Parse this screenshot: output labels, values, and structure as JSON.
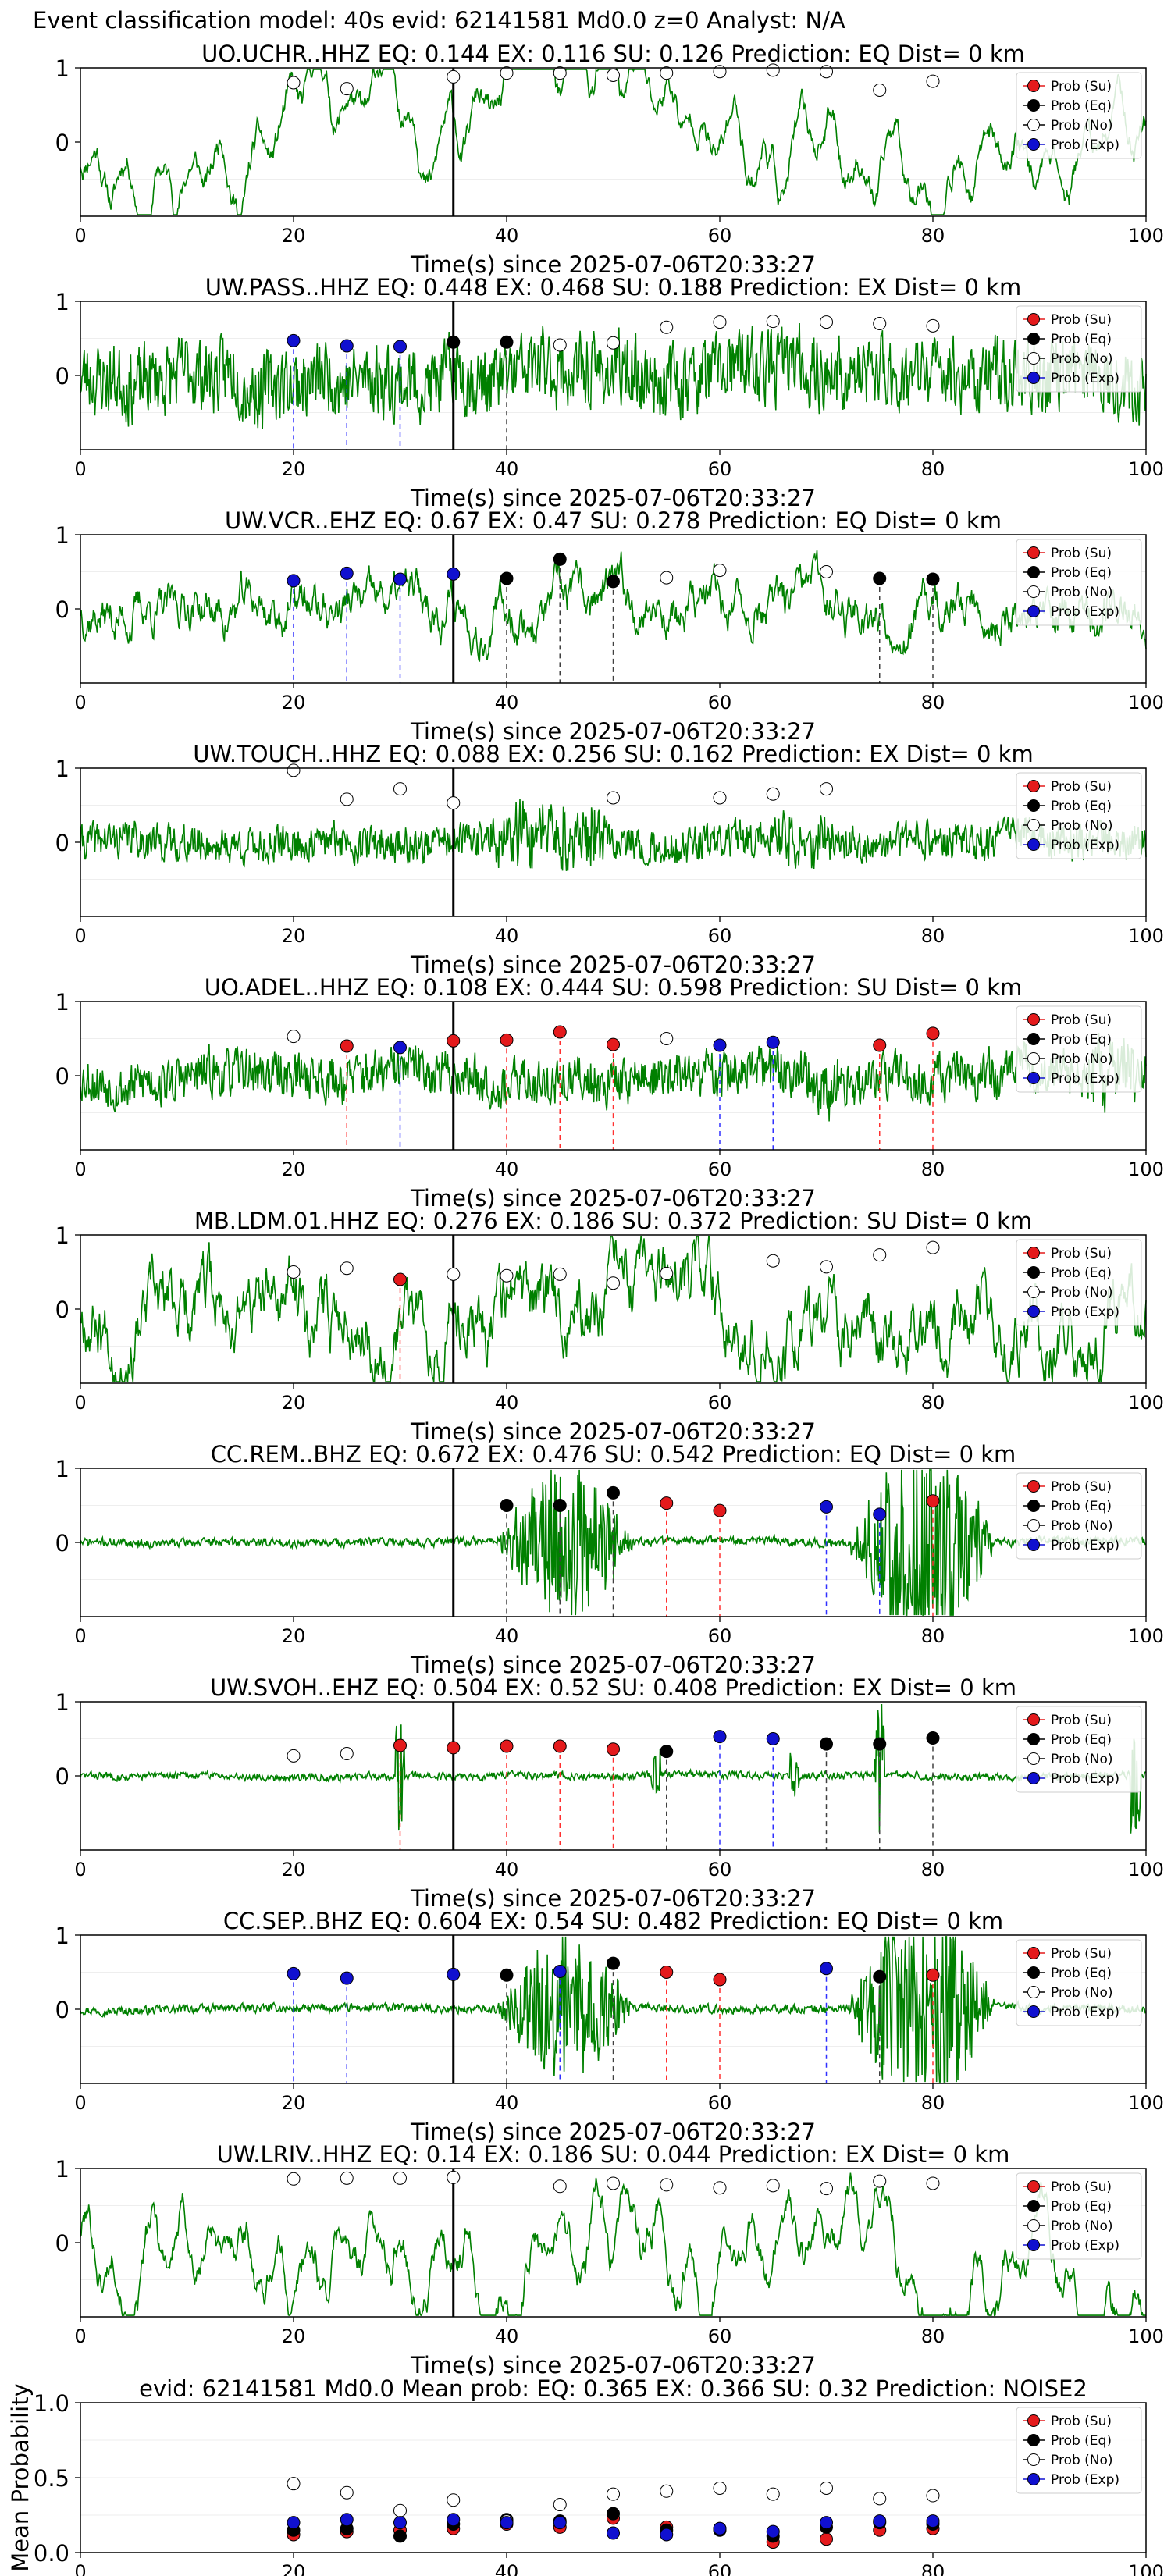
{
  "suptitle": "Event classification model: 40s evid: 62141581 Md0.0 z=0 Analyst: N/A",
  "xlabel": "Time(s) since 2025-07-06T20:33:27",
  "legend": [
    "Prob (Su)",
    "Prob (Eq)",
    "Prob (No)",
    "Prob (Exp)"
  ],
  "colors": {
    "su": "#e41a1c",
    "eq": "#000000",
    "no": "#ffffff",
    "exp": "#1010d0",
    "trace": "#008000",
    "su_line": "#ff3030",
    "eq_line": "#404040",
    "exp_line": "#3030ff"
  },
  "chart_data": [
    {
      "type": "line",
      "title": "UO.UCHR..HHZ   EQ: 0.144  EX: 0.116  SU: 0.126   Prediction: EQ    Dist= 0 km",
      "xlim": [
        0,
        100
      ],
      "ylim": [
        -1,
        1
      ],
      "xticks": [
        "0",
        "20",
        "40",
        "60",
        "80",
        "100"
      ],
      "yticks": [
        "1",
        "0"
      ],
      "pick_time": 35,
      "trace": {
        "seed": 11,
        "style": "smooth",
        "amp": 0.55
      },
      "points": [
        {
          "t": 20,
          "cls": "no",
          "p": 0.8
        },
        {
          "t": 25,
          "cls": "no",
          "p": 0.72
        },
        {
          "t": 35,
          "cls": "no",
          "p": 0.88
        },
        {
          "t": 40,
          "cls": "no",
          "p": 0.93
        },
        {
          "t": 45,
          "cls": "no",
          "p": 0.93
        },
        {
          "t": 50,
          "cls": "no",
          "p": 0.9
        },
        {
          "t": 55,
          "cls": "no",
          "p": 0.93
        },
        {
          "t": 60,
          "cls": "no",
          "p": 0.95
        },
        {
          "t": 65,
          "cls": "no",
          "p": 0.97
        },
        {
          "t": 70,
          "cls": "no",
          "p": 0.95
        },
        {
          "t": 75,
          "cls": "no",
          "p": 0.7
        },
        {
          "t": 80,
          "cls": "no",
          "p": 0.82
        }
      ]
    },
    {
      "type": "line",
      "title": "UW.PASS..HHZ   EQ: 0.448  EX: 0.468  SU: 0.188   Prediction: EX    Dist= 0 km",
      "xlim": [
        0,
        100
      ],
      "ylim": [
        -1,
        1
      ],
      "xticks": [
        "0",
        "20",
        "40",
        "60",
        "80",
        "100"
      ],
      "yticks": [
        "1",
        "0"
      ],
      "pick_time": 35,
      "trace": {
        "seed": 23,
        "style": "noisy",
        "amp": 0.7
      },
      "points": [
        {
          "t": 20,
          "cls": "exp",
          "p": 0.47
        },
        {
          "t": 25,
          "cls": "exp",
          "p": 0.4
        },
        {
          "t": 30,
          "cls": "exp",
          "p": 0.39
        },
        {
          "t": 35,
          "cls": "eq",
          "p": 0.45
        },
        {
          "t": 40,
          "cls": "eq",
          "p": 0.45
        },
        {
          "t": 45,
          "cls": "no",
          "p": 0.41
        },
        {
          "t": 50,
          "cls": "no",
          "p": 0.44
        },
        {
          "t": 55,
          "cls": "no",
          "p": 0.65
        },
        {
          "t": 60,
          "cls": "no",
          "p": 0.72
        },
        {
          "t": 65,
          "cls": "no",
          "p": 0.73
        },
        {
          "t": 70,
          "cls": "no",
          "p": 0.72
        },
        {
          "t": 75,
          "cls": "no",
          "p": 0.7
        },
        {
          "t": 80,
          "cls": "no",
          "p": 0.67
        }
      ]
    },
    {
      "type": "line",
      "title": "UW.VCR..EHZ   EQ: 0.67  EX: 0.47  SU: 0.278   Prediction: EQ    Dist= 0 km",
      "xlim": [
        0,
        100
      ],
      "ylim": [
        -1,
        1
      ],
      "xticks": [
        "0",
        "20",
        "40",
        "60",
        "80",
        "100"
      ],
      "yticks": [
        "1",
        "0"
      ],
      "pick_time": 35,
      "trace": {
        "seed": 37,
        "style": "medium",
        "amp": 0.35
      },
      "points": [
        {
          "t": 20,
          "cls": "exp",
          "p": 0.38
        },
        {
          "t": 25,
          "cls": "exp",
          "p": 0.48
        },
        {
          "t": 30,
          "cls": "exp",
          "p": 0.4
        },
        {
          "t": 35,
          "cls": "exp",
          "p": 0.47
        },
        {
          "t": 40,
          "cls": "eq",
          "p": 0.41
        },
        {
          "t": 45,
          "cls": "eq",
          "p": 0.67
        },
        {
          "t": 50,
          "cls": "eq",
          "p": 0.37
        },
        {
          "t": 55,
          "cls": "no",
          "p": 0.42
        },
        {
          "t": 60,
          "cls": "no",
          "p": 0.52
        },
        {
          "t": 70,
          "cls": "no",
          "p": 0.5
        },
        {
          "t": 75,
          "cls": "eq",
          "p": 0.41
        },
        {
          "t": 80,
          "cls": "eq",
          "p": 0.4
        }
      ]
    },
    {
      "type": "line",
      "title": "UW.TOUCH..HHZ   EQ: 0.088  EX: 0.256  SU: 0.162   Prediction: EX    Dist= 0 km",
      "xlim": [
        0,
        100
      ],
      "ylim": [
        -1,
        1
      ],
      "xticks": [
        "0",
        "20",
        "40",
        "60",
        "80",
        "100"
      ],
      "yticks": [
        "1",
        "0"
      ],
      "pick_time": 35,
      "trace": {
        "seed": 41,
        "style": "noisy",
        "amp": 0.35,
        "bursts": [
          [
            38,
            45,
            1.9
          ],
          [
            43,
            50,
            2.2
          ],
          [
            64,
            72,
            1.5
          ]
        ]
      },
      "points": [
        {
          "t": 20,
          "cls": "no",
          "p": 0.97
        },
        {
          "t": 25,
          "cls": "no",
          "p": 0.58
        },
        {
          "t": 30,
          "cls": "no",
          "p": 0.72
        },
        {
          "t": 35,
          "cls": "no",
          "p": 0.53
        },
        {
          "t": 50,
          "cls": "no",
          "p": 0.6
        },
        {
          "t": 60,
          "cls": "no",
          "p": 0.6
        },
        {
          "t": 65,
          "cls": "no",
          "p": 0.65
        },
        {
          "t": 70,
          "cls": "no",
          "p": 0.72
        }
      ]
    },
    {
      "type": "line",
      "title": "UO.ADEL..HHZ   EQ: 0.108  EX: 0.444  SU: 0.598   Prediction: SU    Dist= 0 km",
      "xlim": [
        0,
        100
      ],
      "ylim": [
        -1,
        1
      ],
      "xticks": [
        "0",
        "20",
        "40",
        "60",
        "80",
        "100"
      ],
      "yticks": [
        "1",
        "0"
      ],
      "pick_time": 35,
      "trace": {
        "seed": 53,
        "style": "noisy",
        "amp": 0.45,
        "bursts": [
          [
            66,
            74,
            1.9
          ],
          [
            93,
            100,
            1.8
          ]
        ]
      },
      "points": [
        {
          "t": 20,
          "cls": "no",
          "p": 0.53
        },
        {
          "t": 25,
          "cls": "su",
          "p": 0.4
        },
        {
          "t": 30,
          "cls": "exp",
          "p": 0.38
        },
        {
          "t": 35,
          "cls": "su",
          "p": 0.47
        },
        {
          "t": 40,
          "cls": "su",
          "p": 0.48
        },
        {
          "t": 45,
          "cls": "su",
          "p": 0.59
        },
        {
          "t": 50,
          "cls": "su",
          "p": 0.42
        },
        {
          "t": 55,
          "cls": "no",
          "p": 0.5
        },
        {
          "t": 60,
          "cls": "exp",
          "p": 0.41
        },
        {
          "t": 65,
          "cls": "exp",
          "p": 0.45
        },
        {
          "t": 75,
          "cls": "su",
          "p": 0.41
        },
        {
          "t": 80,
          "cls": "su",
          "p": 0.57
        }
      ]
    },
    {
      "type": "line",
      "title": "MB.LDM.01.HHZ   EQ: 0.276  EX: 0.186  SU: 0.372   Prediction: SU    Dist= 0 km",
      "xlim": [
        0,
        100
      ],
      "ylim": [
        -1,
        1
      ],
      "xticks": [
        "0",
        "20",
        "40",
        "60",
        "80",
        "100"
      ],
      "yticks": [
        "1",
        "0"
      ],
      "pick_time": 35,
      "trace": {
        "seed": 67,
        "style": "medium",
        "amp": 0.55
      },
      "points": [
        {
          "t": 20,
          "cls": "no",
          "p": 0.5
        },
        {
          "t": 25,
          "cls": "no",
          "p": 0.55
        },
        {
          "t": 30,
          "cls": "su",
          "p": 0.4
        },
        {
          "t": 35,
          "cls": "no",
          "p": 0.47
        },
        {
          "t": 40,
          "cls": "no",
          "p": 0.45
        },
        {
          "t": 45,
          "cls": "no",
          "p": 0.47
        },
        {
          "t": 50,
          "cls": "no",
          "p": 0.35
        },
        {
          "t": 55,
          "cls": "no",
          "p": 0.48
        },
        {
          "t": 65,
          "cls": "no",
          "p": 0.65
        },
        {
          "t": 70,
          "cls": "no",
          "p": 0.57
        },
        {
          "t": 75,
          "cls": "no",
          "p": 0.73
        },
        {
          "t": 80,
          "cls": "no",
          "p": 0.83
        }
      ]
    },
    {
      "type": "line",
      "title": "CC.REM..BHZ   EQ: 0.672  EX: 0.476  SU: 0.542   Prediction: EQ    Dist= 0 km",
      "xlim": [
        0,
        100
      ],
      "ylim": [
        -1,
        1
      ],
      "xticks": [
        "0",
        "20",
        "40",
        "60",
        "80",
        "100"
      ],
      "yticks": [
        "1",
        "0"
      ],
      "pick_time": 35,
      "trace": {
        "seed": 71,
        "style": "noisy",
        "amp": 0.08,
        "bursts": [
          [
            39,
            52,
            6.0
          ],
          [
            72,
            86,
            8.0
          ]
        ]
      },
      "points": [
        {
          "t": 40,
          "cls": "eq",
          "p": 0.5
        },
        {
          "t": 45,
          "cls": "eq",
          "p": 0.5
        },
        {
          "t": 50,
          "cls": "eq",
          "p": 0.67
        },
        {
          "t": 55,
          "cls": "su",
          "p": 0.53
        },
        {
          "t": 60,
          "cls": "su",
          "p": 0.43
        },
        {
          "t": 70,
          "cls": "exp",
          "p": 0.48
        },
        {
          "t": 75,
          "cls": "exp",
          "p": 0.38
        },
        {
          "t": 80,
          "cls": "su",
          "p": 0.56
        }
      ]
    },
    {
      "type": "line",
      "title": "UW.SVOH..EHZ   EQ: 0.504  EX: 0.52  SU: 0.408   Prediction: EX    Dist= 0 km",
      "xlim": [
        0,
        100
      ],
      "ylim": [
        -1,
        1
      ],
      "xticks": [
        "0",
        "20",
        "40",
        "60",
        "80",
        "100"
      ],
      "yticks": [
        "1",
        "0"
      ],
      "pick_time": 35,
      "trace": {
        "seed": 83,
        "style": "noisy",
        "amp": 0.07,
        "spikes": [
          [
            30,
            6
          ],
          [
            75,
            8
          ],
          [
            54,
            3
          ],
          [
            67,
            3
          ],
          [
            99,
            7
          ]
        ]
      },
      "points": [
        {
          "t": 20,
          "cls": "no",
          "p": 0.27
        },
        {
          "t": 25,
          "cls": "no",
          "p": 0.3
        },
        {
          "t": 30,
          "cls": "su",
          "p": 0.41
        },
        {
          "t": 35,
          "cls": "su",
          "p": 0.38
        },
        {
          "t": 40,
          "cls": "su",
          "p": 0.4
        },
        {
          "t": 45,
          "cls": "su",
          "p": 0.4
        },
        {
          "t": 50,
          "cls": "su",
          "p": 0.36
        },
        {
          "t": 55,
          "cls": "eq",
          "p": 0.33
        },
        {
          "t": 60,
          "cls": "exp",
          "p": 0.53
        },
        {
          "t": 65,
          "cls": "exp",
          "p": 0.5
        },
        {
          "t": 70,
          "cls": "eq",
          "p": 0.43
        },
        {
          "t": 75,
          "cls": "eq",
          "p": 0.43
        },
        {
          "t": 80,
          "cls": "eq",
          "p": 0.51
        }
      ]
    },
    {
      "type": "line",
      "title": "CC.SEP..BHZ   EQ: 0.604  EX: 0.54  SU: 0.482   Prediction: EQ    Dist= 0 km",
      "xlim": [
        0,
        100
      ],
      "ylim": [
        -1,
        1
      ],
      "xticks": [
        "0",
        "20",
        "40",
        "60",
        "80",
        "100"
      ],
      "yticks": [
        "1",
        "0"
      ],
      "pick_time": 35,
      "trace": {
        "seed": 97,
        "style": "noisy",
        "amp": 0.08,
        "bursts": [
          [
            39,
            52,
            5.5
          ],
          [
            72,
            86,
            8.0
          ]
        ]
      },
      "points": [
        {
          "t": 20,
          "cls": "exp",
          "p": 0.48
        },
        {
          "t": 25,
          "cls": "exp",
          "p": 0.42
        },
        {
          "t": 35,
          "cls": "exp",
          "p": 0.47
        },
        {
          "t": 40,
          "cls": "eq",
          "p": 0.46
        },
        {
          "t": 45,
          "cls": "exp",
          "p": 0.51
        },
        {
          "t": 50,
          "cls": "eq",
          "p": 0.62
        },
        {
          "t": 55,
          "cls": "su",
          "p": 0.5
        },
        {
          "t": 60,
          "cls": "su",
          "p": 0.4
        },
        {
          "t": 70,
          "cls": "exp",
          "p": 0.55
        },
        {
          "t": 75,
          "cls": "eq",
          "p": 0.44
        },
        {
          "t": 80,
          "cls": "su",
          "p": 0.46
        }
      ]
    },
    {
      "type": "line",
      "title": "UW.LRIV..HHZ   EQ: 0.14  EX: 0.186  SU: 0.044   Prediction: EX    Dist= 0 km",
      "xlim": [
        0,
        100
      ],
      "ylim": [
        -1,
        1
      ],
      "xticks": [
        "0",
        "20",
        "40",
        "60",
        "80",
        "100"
      ],
      "yticks": [
        "1",
        "0"
      ],
      "pick_time": 35,
      "trace": {
        "seed": 101,
        "style": "smooth",
        "amp": 0.65
      },
      "points": [
        {
          "t": 20,
          "cls": "no",
          "p": 0.86
        },
        {
          "t": 25,
          "cls": "no",
          "p": 0.87
        },
        {
          "t": 30,
          "cls": "no",
          "p": 0.87
        },
        {
          "t": 35,
          "cls": "no",
          "p": 0.88
        },
        {
          "t": 45,
          "cls": "no",
          "p": 0.76
        },
        {
          "t": 50,
          "cls": "no",
          "p": 0.8
        },
        {
          "t": 55,
          "cls": "no",
          "p": 0.78
        },
        {
          "t": 60,
          "cls": "no",
          "p": 0.74
        },
        {
          "t": 65,
          "cls": "no",
          "p": 0.77
        },
        {
          "t": 70,
          "cls": "no",
          "p": 0.73
        },
        {
          "t": 75,
          "cls": "no",
          "p": 0.83
        },
        {
          "t": 80,
          "cls": "no",
          "p": 0.8
        }
      ]
    },
    {
      "type": "scatter",
      "title": "evid: 62141581  Md0.0   Mean prob:   EQ: 0.365  EX: 0.366  SU: 0.32   Prediction: NOISE2",
      "ylabel": "Mean Probability",
      "xlim": [
        0,
        100
      ],
      "ylim": [
        0,
        1
      ],
      "xticks": [
        "0",
        "20",
        "40",
        "60",
        "80",
        "100"
      ],
      "yticks": [
        "1.0",
        "0.5",
        "0.0"
      ],
      "x": [
        20,
        25,
        30,
        35,
        40,
        45,
        50,
        55,
        60,
        65,
        70,
        75,
        80
      ],
      "series": [
        {
          "name": "Prob (Su)",
          "cls": "su",
          "values": [
            0.12,
            0.14,
            0.15,
            0.16,
            0.19,
            0.17,
            0.23,
            0.17,
            0.16,
            0.07,
            0.09,
            0.15,
            0.16
          ]
        },
        {
          "name": "Prob (Eq)",
          "cls": "eq",
          "values": [
            0.15,
            0.16,
            0.11,
            0.19,
            0.22,
            0.21,
            0.26,
            0.15,
            0.15,
            0.11,
            0.17,
            0.2,
            0.19
          ]
        },
        {
          "name": "Prob (No)",
          "cls": "no",
          "values": [
            0.46,
            0.4,
            0.28,
            0.35,
            0.21,
            0.32,
            0.39,
            0.41,
            0.43,
            0.39,
            0.43,
            0.36,
            0.38
          ]
        },
        {
          "name": "Prob (Exp)",
          "cls": "exp",
          "values": [
            0.2,
            0.22,
            0.2,
            0.22,
            0.2,
            0.2,
            0.13,
            0.12,
            0.16,
            0.14,
            0.2,
            0.21,
            0.21
          ]
        }
      ]
    }
  ]
}
